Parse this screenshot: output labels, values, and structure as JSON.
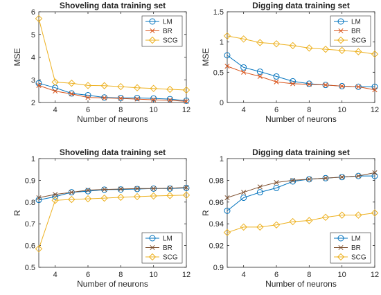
{
  "chart_data": [
    {
      "type": "line",
      "title": "Shoveling data training set",
      "xlabel": "Number of neurons",
      "ylabel": "MSE",
      "xlim": [
        3,
        12
      ],
      "ylim": [
        2,
        6
      ],
      "xticks": [
        4,
        6,
        8,
        10,
        12
      ],
      "yticks": [
        2,
        3,
        4,
        5,
        6
      ],
      "ytick_labels": [
        "2",
        "3",
        "4",
        "5",
        "6"
      ],
      "x": [
        3,
        4,
        5,
        6,
        7,
        8,
        9,
        10,
        11,
        12
      ],
      "legend_position": "top-right",
      "series": [
        {
          "name": "LM",
          "color": "#0072BD",
          "marker": "circle",
          "values": [
            2.85,
            2.65,
            2.4,
            2.32,
            2.22,
            2.2,
            2.2,
            2.18,
            2.15,
            2.08
          ]
        },
        {
          "name": "BR",
          "color": "#D95319",
          "marker": "x",
          "values": [
            2.75,
            2.5,
            2.38,
            2.22,
            2.2,
            2.18,
            2.15,
            2.12,
            2.1,
            2.05
          ]
        },
        {
          "name": "SCG",
          "color": "#EDB120",
          "marker": "diamond",
          "values": [
            5.7,
            2.9,
            2.85,
            2.75,
            2.74,
            2.7,
            2.65,
            2.62,
            2.58,
            2.55
          ]
        }
      ]
    },
    {
      "type": "line",
      "title": "Digging data training set",
      "xlabel": "Number of neurons",
      "ylabel": "MSE",
      "xlim": [
        3,
        12
      ],
      "ylim": [
        0,
        1.5
      ],
      "xticks": [
        4,
        6,
        8,
        10,
        12
      ],
      "yticks": [
        0,
        0.5,
        1,
        1.5
      ],
      "ytick_labels": [
        "0",
        "0.5",
        "1",
        "1.5"
      ],
      "x": [
        3,
        4,
        5,
        6,
        7,
        8,
        9,
        10,
        11,
        12
      ],
      "legend_position": "top-right",
      "series": [
        {
          "name": "LM",
          "color": "#0072BD",
          "marker": "circle",
          "values": [
            0.78,
            0.58,
            0.51,
            0.43,
            0.35,
            0.31,
            0.29,
            0.27,
            0.26,
            0.26
          ]
        },
        {
          "name": "BR",
          "color": "#D95319",
          "marker": "x",
          "values": [
            0.6,
            0.5,
            0.43,
            0.34,
            0.31,
            0.3,
            0.29,
            0.27,
            0.26,
            0.21
          ]
        },
        {
          "name": "SCG",
          "color": "#EDB120",
          "marker": "diamond",
          "values": [
            1.1,
            1.05,
            0.99,
            0.97,
            0.94,
            0.9,
            0.88,
            0.86,
            0.84,
            0.8
          ]
        }
      ]
    },
    {
      "type": "line",
      "title": "Shoveling data training set",
      "xlabel": "Number of neurons",
      "ylabel": "R",
      "xlim": [
        3,
        12
      ],
      "ylim": [
        0.5,
        1
      ],
      "xticks": [
        4,
        6,
        8,
        10,
        12
      ],
      "yticks": [
        0.5,
        0.6,
        0.7,
        0.8,
        0.9,
        1
      ],
      "ytick_labels": [
        "0.5",
        "0.6",
        "0.7",
        "0.8",
        "0.9",
        "1"
      ],
      "x": [
        3,
        4,
        5,
        6,
        7,
        8,
        9,
        10,
        11,
        12
      ],
      "legend_position": "bottom-right",
      "series": [
        {
          "name": "LM",
          "color": "#0072BD",
          "marker": "circle",
          "values": [
            0.81,
            0.825,
            0.845,
            0.85,
            0.857,
            0.858,
            0.86,
            0.862,
            0.862,
            0.865
          ]
        },
        {
          "name": "BR",
          "color": "#7E4F2E",
          "marker": "x",
          "values": [
            0.82,
            0.835,
            0.845,
            0.855,
            0.858,
            0.86,
            0.862,
            0.862,
            0.864,
            0.867
          ]
        },
        {
          "name": "SCG",
          "color": "#EDB120",
          "marker": "diamond",
          "values": [
            0.585,
            0.808,
            0.812,
            0.815,
            0.818,
            0.822,
            0.825,
            0.828,
            0.83,
            0.832
          ]
        }
      ]
    },
    {
      "type": "line",
      "title": "Digging data training set",
      "xlabel": "Number of neurons",
      "ylabel": "R",
      "xlim": [
        3,
        12
      ],
      "ylim": [
        0.9,
        1
      ],
      "xticks": [
        4,
        6,
        8,
        10,
        12
      ],
      "yticks": [
        0.9,
        0.92,
        0.94,
        0.96,
        0.98,
        1
      ],
      "ytick_labels": [
        "0.9",
        "0.92",
        "0.94",
        "0.96",
        "0.98",
        "1"
      ],
      "x": [
        3,
        4,
        5,
        6,
        7,
        8,
        9,
        10,
        11,
        12
      ],
      "legend_position": "bottom-right",
      "series": [
        {
          "name": "LM",
          "color": "#0072BD",
          "marker": "circle",
          "values": [
            0.952,
            0.964,
            0.969,
            0.973,
            0.979,
            0.981,
            0.982,
            0.983,
            0.984,
            0.984
          ]
        },
        {
          "name": "BR",
          "color": "#7E4F2E",
          "marker": "x",
          "values": [
            0.964,
            0.969,
            0.974,
            0.978,
            0.98,
            0.981,
            0.982,
            0.983,
            0.984,
            0.987
          ]
        },
        {
          "name": "SCG",
          "color": "#EDB120",
          "marker": "diamond",
          "values": [
            0.932,
            0.937,
            0.937,
            0.939,
            0.942,
            0.943,
            0.946,
            0.948,
            0.948,
            0.95
          ]
        }
      ]
    }
  ]
}
